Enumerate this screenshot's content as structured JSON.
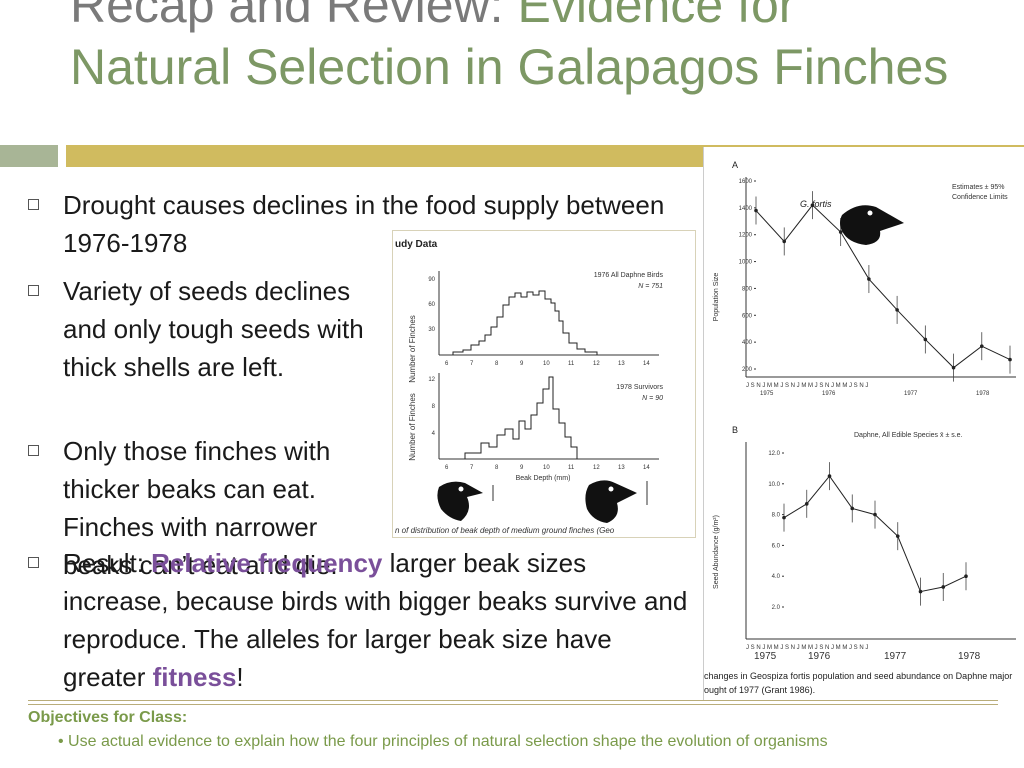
{
  "title": {
    "part1": "Recap and Review: ",
    "part2": "Evidence for Natural Selection in Galapagos Finches"
  },
  "bullets": [
    {
      "text": "Drought causes declines in the food supply between 1976-1978"
    },
    {
      "text": "Variety of seeds declines and only tough seeds with thick shells are left."
    },
    {
      "text": "Only those finches with thicker beaks can eat. Finches with narrower beaks can’t eat and die."
    },
    {
      "pre": "Result: ",
      "hl1": "Relative frequency",
      "mid": " larger beak sizes increase, because birds with bigger beaks survive and reproduce.  The alleles for larger beak size have greater ",
      "hl2": "fitness",
      "post": "!"
    }
  ],
  "figure1": {
    "header": "udy Data",
    "caption": "n of distribution of beak depth of medium ground finches (Geo",
    "top_panel": {
      "label": "1976 All Daphne Birds",
      "n": "N = 751",
      "ylabel": "Number of Finches",
      "yticks": [
        "90",
        "60",
        "30"
      ],
      "xticks": [
        "6",
        "7",
        "8",
        "9",
        "10",
        "11",
        "12",
        "13",
        "14"
      ]
    },
    "bottom_panel": {
      "label": "1978 Survivors",
      "n": "N = 90",
      "ylabel": "Number of Finches",
      "yticks": [
        "12",
        "8",
        "4"
      ],
      "xticks": [
        "6",
        "7",
        "8",
        "9",
        "10",
        "11",
        "12",
        "13",
        "14"
      ],
      "xlabel": "Beak Depth (mm)"
    }
  },
  "figure2": {
    "panel_a": {
      "letter": "A",
      "species": "G. fortis",
      "legend1": "Estimates  ± 95%",
      "legend2": "Confidence Limits",
      "ylabel": "Population Size",
      "yticks": [
        "1600",
        "1400",
        "1200",
        "1000",
        "800",
        "600",
        "400",
        "200"
      ],
      "months": "J  S  N  J  M  M  J  S  N  J  M  M  J  S  N  J  M  M  J  S  N  J",
      "years": [
        "1975",
        "1976",
        "1977",
        "1978"
      ],
      "values": [
        1380,
        1150,
        1420,
        1220,
        870,
        640,
        420,
        210,
        370,
        270
      ]
    },
    "panel_b": {
      "letter": "B",
      "legend": "Daphne, All Edible Species  x̄ ± s.e.",
      "ylabel": "Seed Abundance (g/m²)",
      "yticks": [
        "12.0",
        "10.0",
        "8.0",
        "6.0",
        "4.0",
        "2.0"
      ],
      "months": "J  S  N  J  M  M  J  S  N  J  M  M  J  S  N  J  M  M  J  S  N  J",
      "years": [
        "1975",
        "1976",
        "1977",
        "1978"
      ],
      "values": [
        7.8,
        8.7,
        10.5,
        8.4,
        8.0,
        6.6,
        3.0,
        3.3,
        4.0
      ]
    },
    "caption1": "changes in Geospiza fortis population and seed abundance on Daphne major",
    "caption2": "ought of 1977 (Grant 1986)."
  },
  "objectives": {
    "heading": "Objectives for Class:",
    "item": "• Use actual evidence to explain how the four principles of natural selection shape the evolution of organisms"
  }
}
